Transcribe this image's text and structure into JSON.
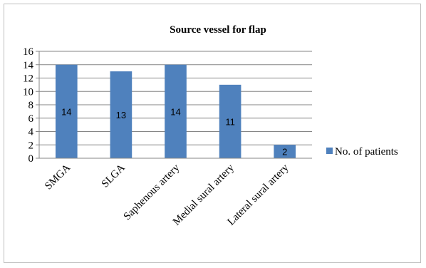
{
  "chart_data": {
    "type": "bar",
    "title": "Source vessel for flap",
    "categories": [
      "SMGA",
      "SLGA",
      "Saphenous artery",
      "Medial sural artery",
      "Lateral sural artery"
    ],
    "series": [
      {
        "name": "No. of patients",
        "values": [
          14,
          13,
          14,
          11,
          2
        ]
      }
    ],
    "data_labels": [
      "14",
      "13",
      "14",
      "11",
      "2"
    ],
    "yticks": [
      "0",
      "2",
      "4",
      "6",
      "8",
      "10",
      "12",
      "14",
      "16"
    ],
    "ylim": [
      0,
      16
    ],
    "grid": true,
    "legend_position": "right",
    "bar_color": "#4f81bd"
  }
}
